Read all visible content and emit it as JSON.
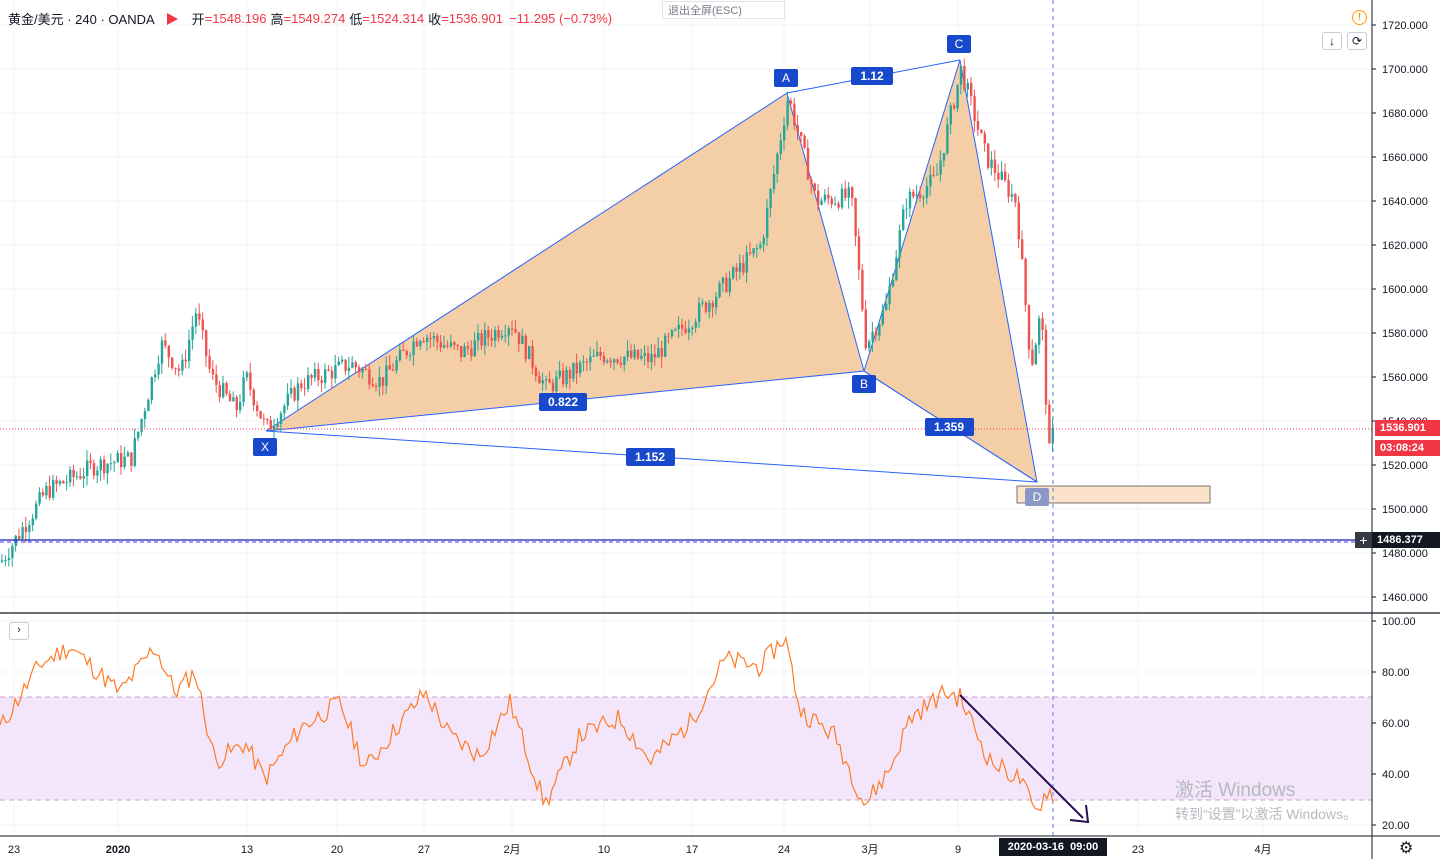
{
  "header": {
    "symbol": "黄金/美元 · 240 · OANDA",
    "open_label": "开",
    "open": "=1548.196",
    "high_label": "高",
    "high": "=1549.274",
    "low_label": "低",
    "low": "=1524.314",
    "close_label": "收",
    "close": "=1536.901",
    "change": "−11.295 (−0.73%)",
    "change_color": "#f23645"
  },
  "toolbar": {
    "exit_fullscreen": "退出全屏(ESC)",
    "down_arrow_icon": "↓",
    "refresh_icon": "⟳",
    "warning_icon": "!",
    "rsi_toggle_icon": "›",
    "settings_icon": "⚙"
  },
  "price_axis": {
    "ticks": [
      "1720.000",
      "1700.000",
      "1680.000",
      "1660.000",
      "1640.000",
      "1620.000",
      "1600.000",
      "1580.000",
      "1560.000",
      "1540.000",
      "1520.000",
      "1500.000",
      "1480.000",
      "1460.000"
    ],
    "current_price": "1536.901",
    "countdown": "03:08:24",
    "crosshair_price": "1486.377",
    "current_color": "#f23645"
  },
  "rsi_axis": {
    "ticks": [
      "100.00",
      "80.00",
      "60.00",
      "40.00",
      "20.00"
    ],
    "upper_band": 70,
    "lower_band": 30
  },
  "time_axis": {
    "labels": [
      "23",
      "2020",
      "13",
      "20",
      "27",
      "2月",
      "10",
      "17",
      "24",
      "3月",
      "9",
      "23",
      "4月"
    ],
    "crosshair_label": "2020-03-16  09:00"
  },
  "pattern": {
    "points": [
      "X",
      "A",
      "B",
      "C",
      "D"
    ],
    "ratios": {
      "xab": "0.822",
      "abc": "1.12",
      "bcd": "1.359",
      "xad": "1.152"
    },
    "fill_color": "#f2c597",
    "line_color": "#2962ff",
    "label_color": "#1848cc"
  },
  "watermark": {
    "line1": "激活 Windows",
    "line2": "转到“设置”以激活 Windows。"
  },
  "chart_data": {
    "type": "candlestick",
    "symbol": "XAU/USD",
    "timeframe": "240",
    "ylim": [
      1450,
      1730
    ],
    "rsi_ylim": [
      15,
      100
    ],
    "anchors": [
      {
        "x": 0,
        "close": 1476
      },
      {
        "x": 45,
        "close": 1508
      },
      {
        "x": 95,
        "close": 1520
      },
      {
        "x": 130,
        "close": 1523
      },
      {
        "x": 160,
        "close": 1575
      },
      {
        "x": 180,
        "close": 1562
      },
      {
        "x": 195,
        "close": 1590
      },
      {
        "x": 210,
        "close": 1560
      },
      {
        "x": 235,
        "close": 1545
      },
      {
        "x": 245,
        "close": 1560
      },
      {
        "x": 265,
        "close": 1536
      },
      {
        "x": 300,
        "close": 1557
      },
      {
        "x": 350,
        "close": 1566
      },
      {
        "x": 380,
        "close": 1558
      },
      {
        "x": 420,
        "close": 1580
      },
      {
        "x": 460,
        "close": 1571
      },
      {
        "x": 510,
        "close": 1585
      },
      {
        "x": 545,
        "close": 1555
      },
      {
        "x": 600,
        "close": 1570
      },
      {
        "x": 650,
        "close": 1568
      },
      {
        "x": 720,
        "close": 1600
      },
      {
        "x": 760,
        "close": 1620
      },
      {
        "x": 787,
        "close": 1688
      },
      {
        "x": 815,
        "close": 1640
      },
      {
        "x": 850,
        "close": 1642
      },
      {
        "x": 865,
        "close": 1575
      },
      {
        "x": 885,
        "close": 1592
      },
      {
        "x": 905,
        "close": 1640
      },
      {
        "x": 935,
        "close": 1650
      },
      {
        "x": 960,
        "close": 1700
      },
      {
        "x": 985,
        "close": 1660
      },
      {
        "x": 1015,
        "close": 1640
      },
      {
        "x": 1030,
        "close": 1565
      },
      {
        "x": 1040,
        "close": 1590
      },
      {
        "x": 1048,
        "close": 1525
      },
      {
        "x": 1053,
        "close": 1537
      }
    ],
    "rsi_anchors": [
      {
        "x": 0,
        "v": 58
      },
      {
        "x": 40,
        "v": 83
      },
      {
        "x": 70,
        "v": 90
      },
      {
        "x": 120,
        "v": 72
      },
      {
        "x": 155,
        "v": 90
      },
      {
        "x": 175,
        "v": 72
      },
      {
        "x": 195,
        "v": 80
      },
      {
        "x": 215,
        "v": 45
      },
      {
        "x": 245,
        "v": 52
      },
      {
        "x": 265,
        "v": 38
      },
      {
        "x": 300,
        "v": 58
      },
      {
        "x": 340,
        "v": 68
      },
      {
        "x": 365,
        "v": 42
      },
      {
        "x": 400,
        "v": 60
      },
      {
        "x": 425,
        "v": 72
      },
      {
        "x": 450,
        "v": 55
      },
      {
        "x": 480,
        "v": 47
      },
      {
        "x": 510,
        "v": 68
      },
      {
        "x": 545,
        "v": 28
      },
      {
        "x": 580,
        "v": 55
      },
      {
        "x": 620,
        "v": 62
      },
      {
        "x": 650,
        "v": 45
      },
      {
        "x": 690,
        "v": 60
      },
      {
        "x": 725,
        "v": 85
      },
      {
        "x": 760,
        "v": 82
      },
      {
        "x": 785,
        "v": 94
      },
      {
        "x": 800,
        "v": 65
      },
      {
        "x": 835,
        "v": 55
      },
      {
        "x": 865,
        "v": 28
      },
      {
        "x": 890,
        "v": 42
      },
      {
        "x": 910,
        "v": 62
      },
      {
        "x": 945,
        "v": 72
      },
      {
        "x": 960,
        "v": 70
      },
      {
        "x": 990,
        "v": 45
      },
      {
        "x": 1020,
        "v": 38
      },
      {
        "x": 1035,
        "v": 25
      },
      {
        "x": 1048,
        "v": 34
      },
      {
        "x": 1053,
        "v": 32
      }
    ]
  }
}
